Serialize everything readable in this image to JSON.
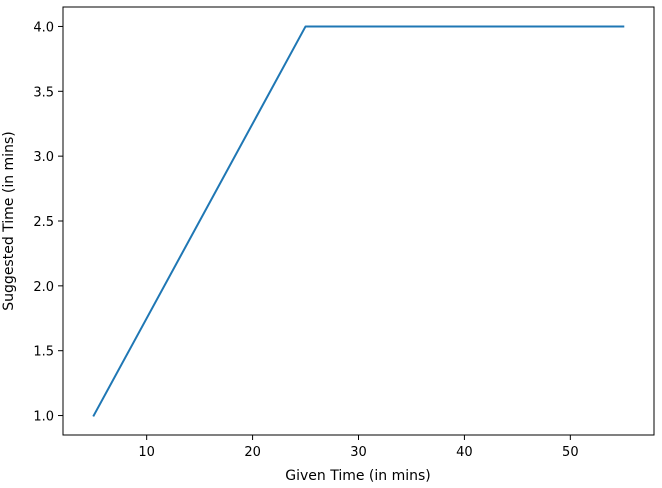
{
  "chart_data": {
    "type": "line",
    "title": "",
    "xlabel": "Given Time (in mins)",
    "ylabel": "Suggested Time (in mins)",
    "xlim": [
      2.1,
      57.9
    ],
    "ylim": [
      0.85,
      4.15
    ],
    "xticks": [
      10,
      20,
      30,
      40,
      50
    ],
    "yticks": [
      1.0,
      1.5,
      2.0,
      2.5,
      3.0,
      3.5,
      4.0
    ],
    "xtick_labels": [
      "10",
      "20",
      "30",
      "40",
      "50"
    ],
    "ytick_labels": [
      "1.0",
      "1.5",
      "2.0",
      "2.5",
      "3.0",
      "3.5",
      "4.0"
    ],
    "grid": false,
    "legend": "none",
    "series": [
      {
        "color": "#1f77b4",
        "x": [
          5,
          25,
          55
        ],
        "y": [
          1.0,
          4.0,
          4.0
        ]
      }
    ]
  }
}
